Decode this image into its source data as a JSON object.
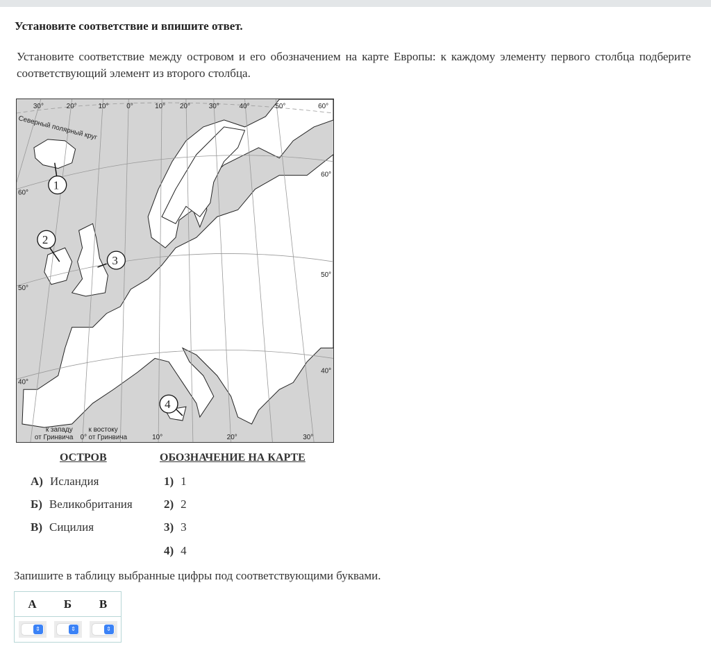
{
  "header": {
    "title": "Установите соответствие и впишите ответ."
  },
  "task": {
    "text": "Установите соответствие между островом и его обозначением на карте Европы: к каждому элементу первого столбца подберите соответствующий элемент из второго столбца."
  },
  "map": {
    "top_longitudes": [
      "30°",
      "20°",
      "10°",
      "0°",
      "10°",
      "20°",
      "30°",
      "40°",
      "50°",
      "60°"
    ],
    "left_latitudes": [
      "60°",
      "50°",
      "40°"
    ],
    "right_latitudes": [
      "60°",
      "50°",
      "40°"
    ],
    "bottom_longitudes": [
      "10°",
      "20°",
      "30°"
    ],
    "arctic_circle": "Северный полярный круг",
    "west_label": [
      "к западу",
      "от Гринвича"
    ],
    "east_label": [
      "к востоку",
      "от Гринвича"
    ],
    "zero_label": "0°",
    "markers": [
      "1",
      "2",
      "3",
      "4"
    ],
    "sea_color": "#d4d4d4",
    "land_color": "#ffffff"
  },
  "columns": {
    "left_header": "ОСТРОВ",
    "right_header": "ОБОЗНАЧЕНИЕ НА КАРТЕ"
  },
  "islands": [
    {
      "letter": "А)",
      "name": "Исландия"
    },
    {
      "letter": "Б)",
      "name": "Великобритания"
    },
    {
      "letter": "В)",
      "name": "Сицилия"
    }
  ],
  "options": [
    {
      "num": "1)",
      "value": "1"
    },
    {
      "num": "2)",
      "value": "2"
    },
    {
      "num": "3)",
      "value": "3"
    },
    {
      "num": "4)",
      "value": "4"
    }
  ],
  "answer": {
    "instruction": "Запишите в таблицу выбранные цифры под соответствующими буквами.",
    "headers": [
      "А",
      "Б",
      "В"
    ],
    "selected": [
      "",
      "",
      ""
    ]
  }
}
